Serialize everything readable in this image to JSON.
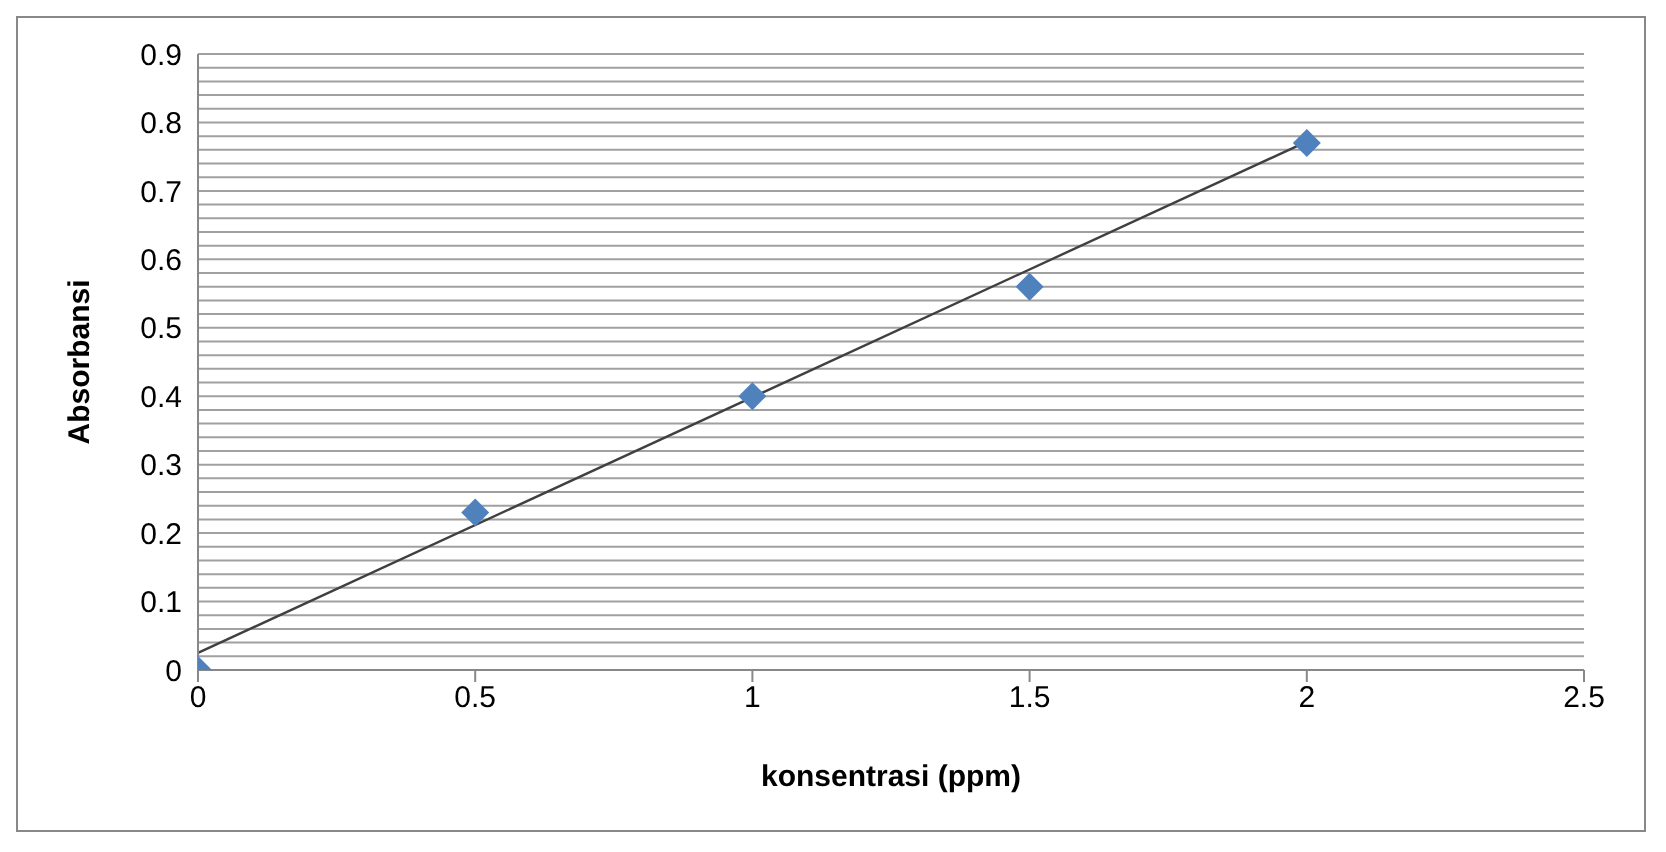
{
  "chart_data": {
    "type": "scatter",
    "xlabel": "konsentrasi (ppm)",
    "ylabel": "Absorbansi",
    "x": [
      0,
      0.5,
      1,
      1.5,
      2
    ],
    "series": [
      {
        "color": "#4f81bd",
        "marker": "diamond",
        "values": [
          0,
          0.23,
          0.4,
          0.56,
          0.77
        ]
      },
      {
        "type": "line",
        "color": "#404040",
        "marker": "none",
        "x": [
          0,
          2
        ],
        "values": [
          0.025,
          0.772
        ]
      }
    ],
    "xlim": [
      0,
      2.5
    ],
    "xticks": [
      0,
      0.5,
      1,
      1.5,
      2,
      2.5
    ],
    "ylim": [
      0,
      0.9
    ],
    "yticks": [
      0,
      {
        "value": 0.02,
        "label": null
      },
      {
        "value": 0.04,
        "label": null
      },
      {
        "value": 0.06,
        "label": null
      },
      {
        "value": 0.08,
        "label": null
      },
      0.1,
      {
        "value": 0.12,
        "label": null
      },
      {
        "value": 0.14,
        "label": null
      },
      {
        "value": 0.16,
        "label": null
      },
      {
        "value": 0.18,
        "label": null
      },
      0.2,
      {
        "value": 0.22,
        "label": null
      },
      {
        "value": 0.24,
        "label": null
      },
      {
        "value": 0.26,
        "label": null
      },
      {
        "value": 0.28,
        "label": null
      },
      0.3,
      {
        "value": 0.32,
        "label": null
      },
      {
        "value": 0.34,
        "label": null
      },
      {
        "value": 0.36,
        "label": null
      },
      {
        "value": 0.38,
        "label": null
      },
      0.4,
      {
        "value": 0.42,
        "label": null
      },
      {
        "value": 0.44,
        "label": null
      },
      {
        "value": 0.46,
        "label": null
      },
      {
        "value": 0.48,
        "label": null
      },
      0.5,
      {
        "value": 0.52,
        "label": null
      },
      {
        "value": 0.54,
        "label": null
      },
      {
        "value": 0.56,
        "label": null
      },
      {
        "value": 0.58,
        "label": null
      },
      0.6,
      {
        "value": 0.62,
        "label": null
      },
      {
        "value": 0.64,
        "label": null
      },
      {
        "value": 0.66,
        "label": null
      },
      {
        "value": 0.68,
        "label": null
      },
      0.7,
      {
        "value": 0.72,
        "label": null
      },
      {
        "value": 0.74,
        "label": null
      },
      {
        "value": 0.76,
        "label": null
      },
      {
        "value": 0.78,
        "label": null
      },
      0.8,
      {
        "value": 0.82,
        "label": null
      },
      {
        "value": 0.84,
        "label": null
      },
      {
        "value": 0.86,
        "label": null
      },
      {
        "value": 0.88,
        "label": null
      },
      0.9
    ],
    "grid": "y",
    "legend": false
  }
}
